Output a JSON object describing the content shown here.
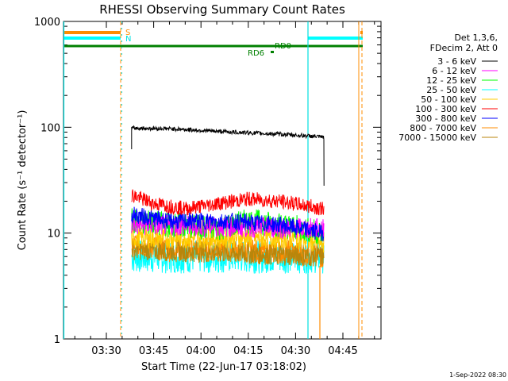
{
  "title": "RHESSI Observing Summary Count Rates",
  "xlabel": "Start Time (22-Jun-17 03:18:02)",
  "ylabel": "Count Rate (s⁻¹ detector⁻¹)",
  "footer": "1-Sep-2022 08:30",
  "legend": {
    "header": [
      "Det 1,3,6,",
      "FDecim 2, Att 0"
    ]
  },
  "colors": {
    "axis": "#000000",
    "s_flag": "#ff8c00",
    "n_flag": "#00ffff",
    "rd_flag": "#008000",
    "vline_orange": "#ff8c00",
    "vline_cyan": "#00e0e0"
  },
  "flags": {
    "S": "S",
    "N": "N",
    "RD0": "RD0",
    "RD6": "RD6"
  },
  "chart_data": {
    "type": "line",
    "title": "RHESSI Observing Summary Count Rates",
    "xlabel": "Start Time (22-Jun-17 03:18:02)",
    "ylabel": "Count Rate (s⁻¹ detector⁻¹)",
    "y_scale": "log",
    "ylim": [
      1,
      1000
    ],
    "xlim": [
      "03:18",
      "04:55"
    ],
    "x_ticks": [
      "03:30",
      "03:45",
      "04:00",
      "04:15",
      "04:30",
      "04:45"
    ],
    "y_ticks": [
      "1",
      "10",
      "100",
      "1000"
    ],
    "grid": false,
    "legend_position": "right",
    "series": [
      {
        "name": "3 - 6 keV",
        "color": "#000000",
        "x": [
          "03:38",
          "03:50",
          "04:10",
          "04:25",
          "04:36",
          "04:39"
        ],
        "values": [
          98,
          97,
          90,
          86,
          82,
          80
        ]
      },
      {
        "name": "6 - 12 keV",
        "color": "#ff00ff",
        "x": [
          "03:38",
          "04:39"
        ],
        "values": [
          12,
          11
        ]
      },
      {
        "name": "12 - 25 keV",
        "color": "#00ff00",
        "x": [
          "03:38",
          "03:50",
          "04:05",
          "04:15",
          "04:25",
          "04:39"
        ],
        "values": [
          13,
          12,
          11,
          13,
          12,
          10
        ]
      },
      {
        "name": "25 - 50 keV",
        "color": "#00ffff",
        "x": [
          "03:38",
          "03:50",
          "04:05",
          "04:25",
          "04:39"
        ],
        "values": [
          6,
          6,
          6,
          6,
          6
        ]
      },
      {
        "name": "50 - 100 keV",
        "color": "#ffcc00",
        "x": [
          "03:38",
          "03:50",
          "04:10",
          "04:30",
          "04:39"
        ],
        "values": [
          9,
          9,
          9,
          9,
          8
        ]
      },
      {
        "name": "100 - 300 keV",
        "color": "#ff0000",
        "x": [
          "03:38",
          "03:45",
          "03:55",
          "04:05",
          "04:15",
          "04:25",
          "04:39"
        ],
        "values": [
          23,
          19,
          17,
          19,
          21,
          20,
          17
        ]
      },
      {
        "name": "300 - 800 keV",
        "color": "#0000ff",
        "x": [
          "03:38",
          "03:50",
          "04:10",
          "04:25",
          "04:39"
        ],
        "values": [
          15,
          13,
          13,
          12,
          10
        ]
      },
      {
        "name": "800 - 7000 keV",
        "color": "#ff8c00",
        "x": [
          "03:38",
          "03:50",
          "04:10",
          "04:30",
          "04:39"
        ],
        "values": [
          8,
          7,
          7,
          6.5,
          6
        ]
      },
      {
        "name": "7000 - 15000 keV",
        "color": "#b8860b",
        "x": [
          "03:38",
          "04:39"
        ],
        "values": [
          7,
          6
        ]
      }
    ]
  }
}
